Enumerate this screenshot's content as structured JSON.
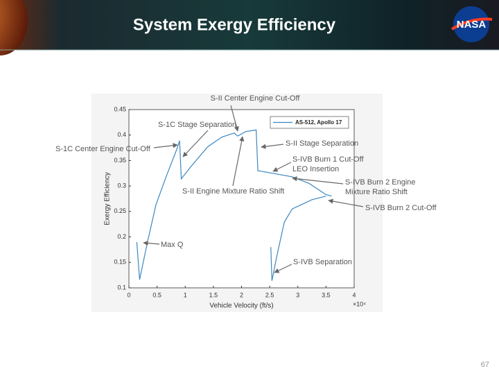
{
  "header": {
    "title": "System Exergy Efficiency",
    "logo_text": "NASA"
  },
  "page_number": "67",
  "chart_data": {
    "type": "line",
    "x_label": "Vehicle Velocity (ft/s)",
    "y_label": "Exergy Efficiency",
    "x_exponent_label": "×10⁴",
    "x": [
      0.14,
      0.19,
      0.33,
      0.48,
      0.66,
      0.85,
      0.9,
      0.93,
      1.1,
      1.4,
      1.65,
      1.87,
      1.93,
      2.08,
      2.26,
      2.29,
      2.5,
      2.9,
      3.2,
      3.5,
      3.6,
      null,
      2.52,
      2.54,
      2.63,
      2.76,
      2.9,
      3.25,
      3.5
    ],
    "series": [
      {
        "name": "AS-512, Apollo 17",
        "color": "#3a87c0",
        "values": [
          0.19,
          0.116,
          0.19,
          0.263,
          0.318,
          0.372,
          0.389,
          0.314,
          0.338,
          0.377,
          0.396,
          0.404,
          0.398,
          0.407,
          0.41,
          0.33,
          0.326,
          0.318,
          0.305,
          0.283,
          0.28,
          null,
          0.18,
          0.114,
          0.164,
          0.229,
          0.255,
          0.273,
          0.28
        ]
      }
    ],
    "xlim": [
      0,
      4
    ],
    "xticks": [
      0,
      0.5,
      1,
      1.5,
      2,
      2.5,
      3,
      3.5,
      4
    ],
    "ylim": [
      0.1,
      0.45
    ],
    "yticks": [
      0.1,
      0.15,
      0.2,
      0.25,
      0.3,
      0.35,
      0.4,
      0.45
    ],
    "grid": false,
    "legend": "upper right",
    "annotations": [
      [
        "S-II Center Engine Cut-Off"
      ],
      [
        "S-1C Stage Separation"
      ],
      [
        "S-1C Center Engine Cut-Off"
      ],
      [
        "S-II Stage Separation"
      ],
      [
        "S-IVB Burn 1 Cut-Off",
        "LEO Insertion"
      ],
      [
        "S-II Engine Mixture Ratio Shift"
      ],
      [
        "S-IVB Burn 2 Engine",
        "Mixture Ratio Shift"
      ],
      [
        "S-IVB Burn 2 Cut-Off"
      ],
      [
        "Max Q"
      ],
      [
        "S-IVB Separation"
      ]
    ]
  }
}
